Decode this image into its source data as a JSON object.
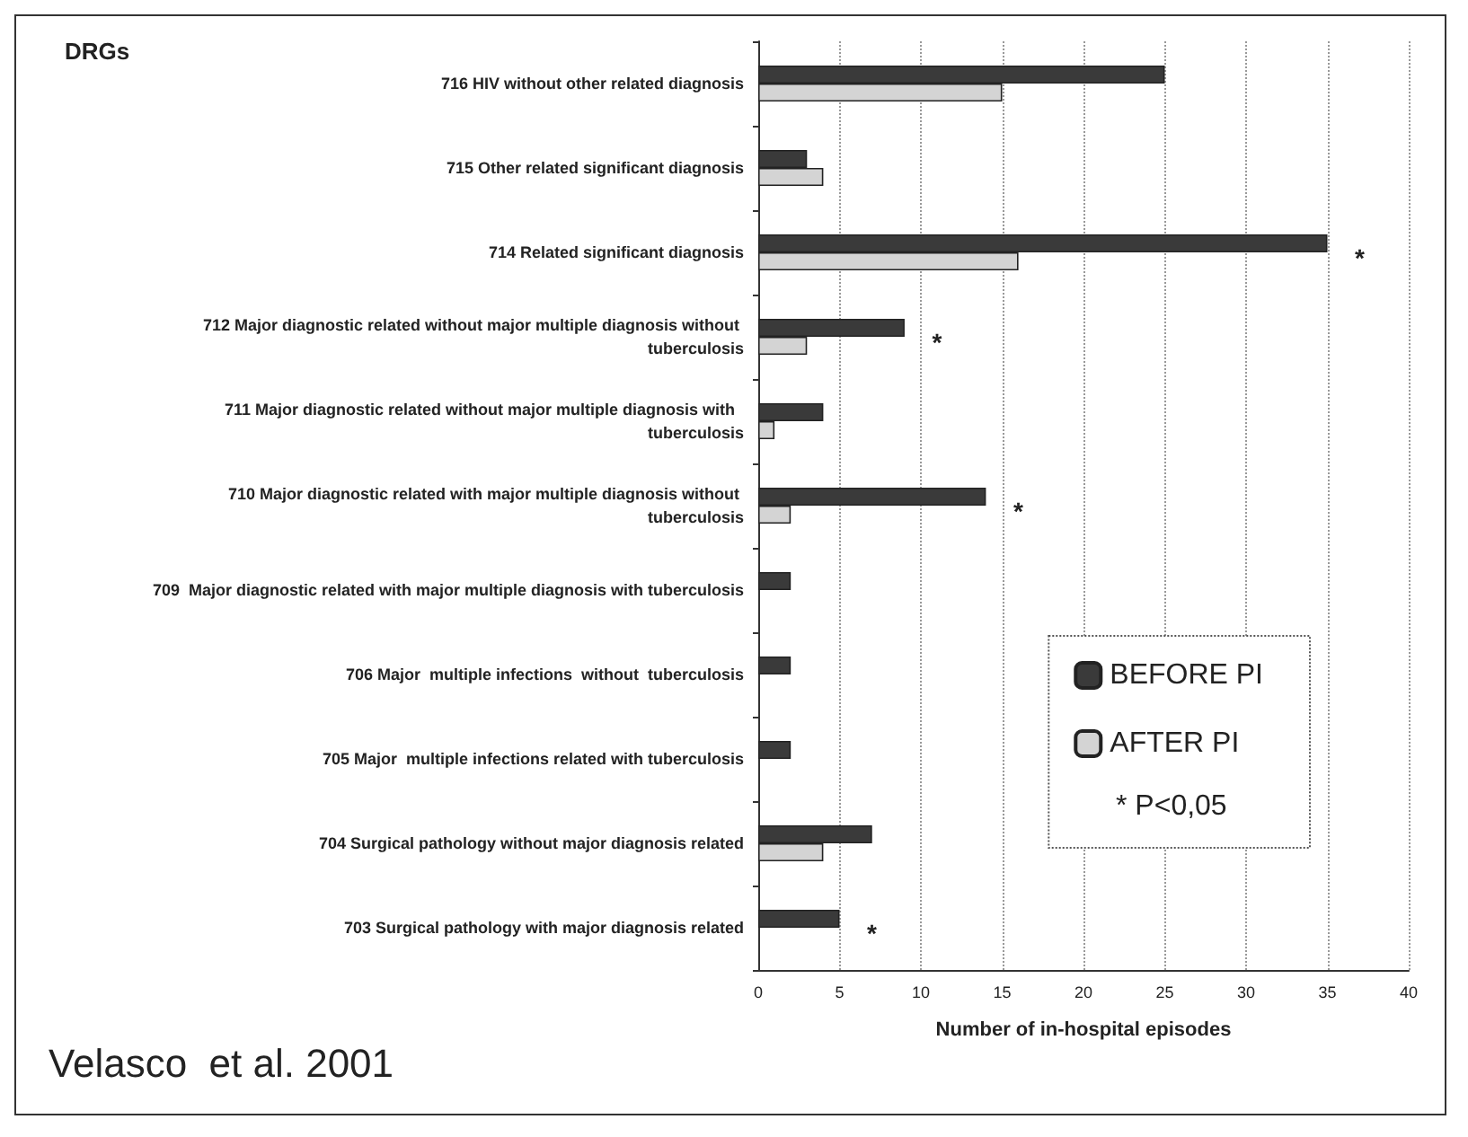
{
  "chart_data": {
    "type": "bar",
    "orientation": "horizontal",
    "title": "DRGs",
    "xlabel": "Number of in-hospital episodes",
    "categories": [
      "716 HIV without other related diagnosis",
      "715 Other related significant diagnosis",
      "714 Related significant diagnosis",
      "712 Major diagnostic related without major multiple diagnosis without tuberculosis",
      "711 Major diagnostic related without major multiple diagnosis with  tuberculosis",
      "710 Major diagnostic related with major multiple diagnosis without tuberculosis",
      "709  Major diagnostic related with major multiple diagnosis with tuberculosis",
      "706 Major  multiple infections  without  tuberculosis",
      "705 Major  multiple infections related with tuberculosis",
      "704 Surgical pathology without major diagnosis related",
      "703 Surgical pathology with major diagnosis related"
    ],
    "series": [
      {
        "name": "BEFORE PI",
        "color": "#3a3a3a",
        "values": [
          25,
          3,
          35,
          9,
          4,
          14,
          2,
          2,
          2,
          7,
          5
        ]
      },
      {
        "name": "AFTER PI",
        "color": "#d4d4d4",
        "values": [
          15,
          4,
          16,
          3,
          1,
          2,
          null,
          null,
          null,
          4,
          null
        ]
      }
    ],
    "xlim": [
      0,
      40
    ],
    "xticks": [
      0,
      5,
      10,
      15,
      20,
      25,
      30,
      35,
      40
    ],
    "grid": "x",
    "legend": "right",
    "annotations": [
      "* P<0,05",
      "Velasco  et al. 2001",
      {
        "text": "*",
        "x": 35,
        "y": "714 Related significant diagnosis"
      },
      {
        "text": "*",
        "x": 9,
        "y": "712 Major diagnostic related without major multiple diagnosis without tuberculosis"
      },
      {
        "text": "*",
        "x": 14,
        "y": "710 Major diagnostic related with major multiple diagnosis without tuberculosis"
      },
      {
        "text": "*",
        "x": 5,
        "y": "703 Surgical pathology with major diagnosis related"
      }
    ]
  }
}
